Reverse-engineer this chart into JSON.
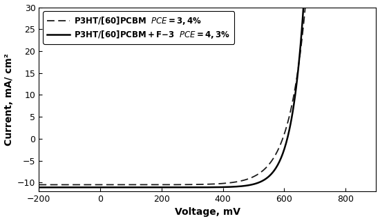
{
  "xlabel": "Voltage, mV",
  "ylabel": "Current, mA/ cm²",
  "xlim": [
    -200,
    900
  ],
  "ylim": [
    -12,
    30
  ],
  "xticks": [
    -200,
    0,
    200,
    400,
    600,
    800
  ],
  "yticks": [
    -10,
    -5,
    0,
    5,
    10,
    15,
    20,
    25,
    30
  ],
  "label1_bold": "P3HT/[60]PCBM",
  "label1_italic": " PCE = 3,4%",
  "label2_bold": "P3HT/[60]PCBM + F-3",
  "label2_italic": " PCE = 4,3%",
  "line1_color": "#1a1a1a",
  "line2_color": "#000000",
  "background_color": "#ffffff",
  "isc1": -10.5,
  "voc1": 595,
  "n1": 2.1,
  "isc2": -11.1,
  "voc2": 610,
  "n2": 1.55,
  "vt": 26
}
